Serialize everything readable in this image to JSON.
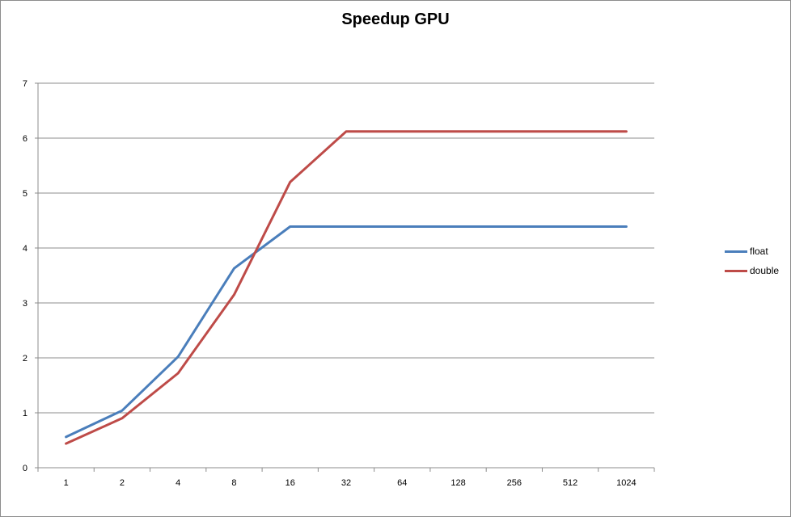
{
  "chart_data": {
    "type": "line",
    "title": "Speedup GPU",
    "xlabel": "",
    "ylabel": "",
    "categories": [
      "1",
      "2",
      "4",
      "8",
      "16",
      "32",
      "64",
      "128",
      "256",
      "512",
      "1024"
    ],
    "ylim": [
      0,
      7
    ],
    "yticks": [
      "0",
      "1",
      "2",
      "3",
      "4",
      "5",
      "6",
      "7"
    ],
    "grid": true,
    "legend_position": "right",
    "series": [
      {
        "name": "float",
        "color": "#4a7ebb",
        "values": [
          0.56,
          1.04,
          2.02,
          3.63,
          4.39,
          4.39,
          4.39,
          4.39,
          4.39,
          4.39,
          4.39
        ]
      },
      {
        "name": "double",
        "color": "#be4b48",
        "values": [
          0.44,
          0.9,
          1.72,
          3.15,
          5.2,
          6.12,
          6.12,
          6.12,
          6.12,
          6.12,
          6.12
        ]
      }
    ]
  }
}
